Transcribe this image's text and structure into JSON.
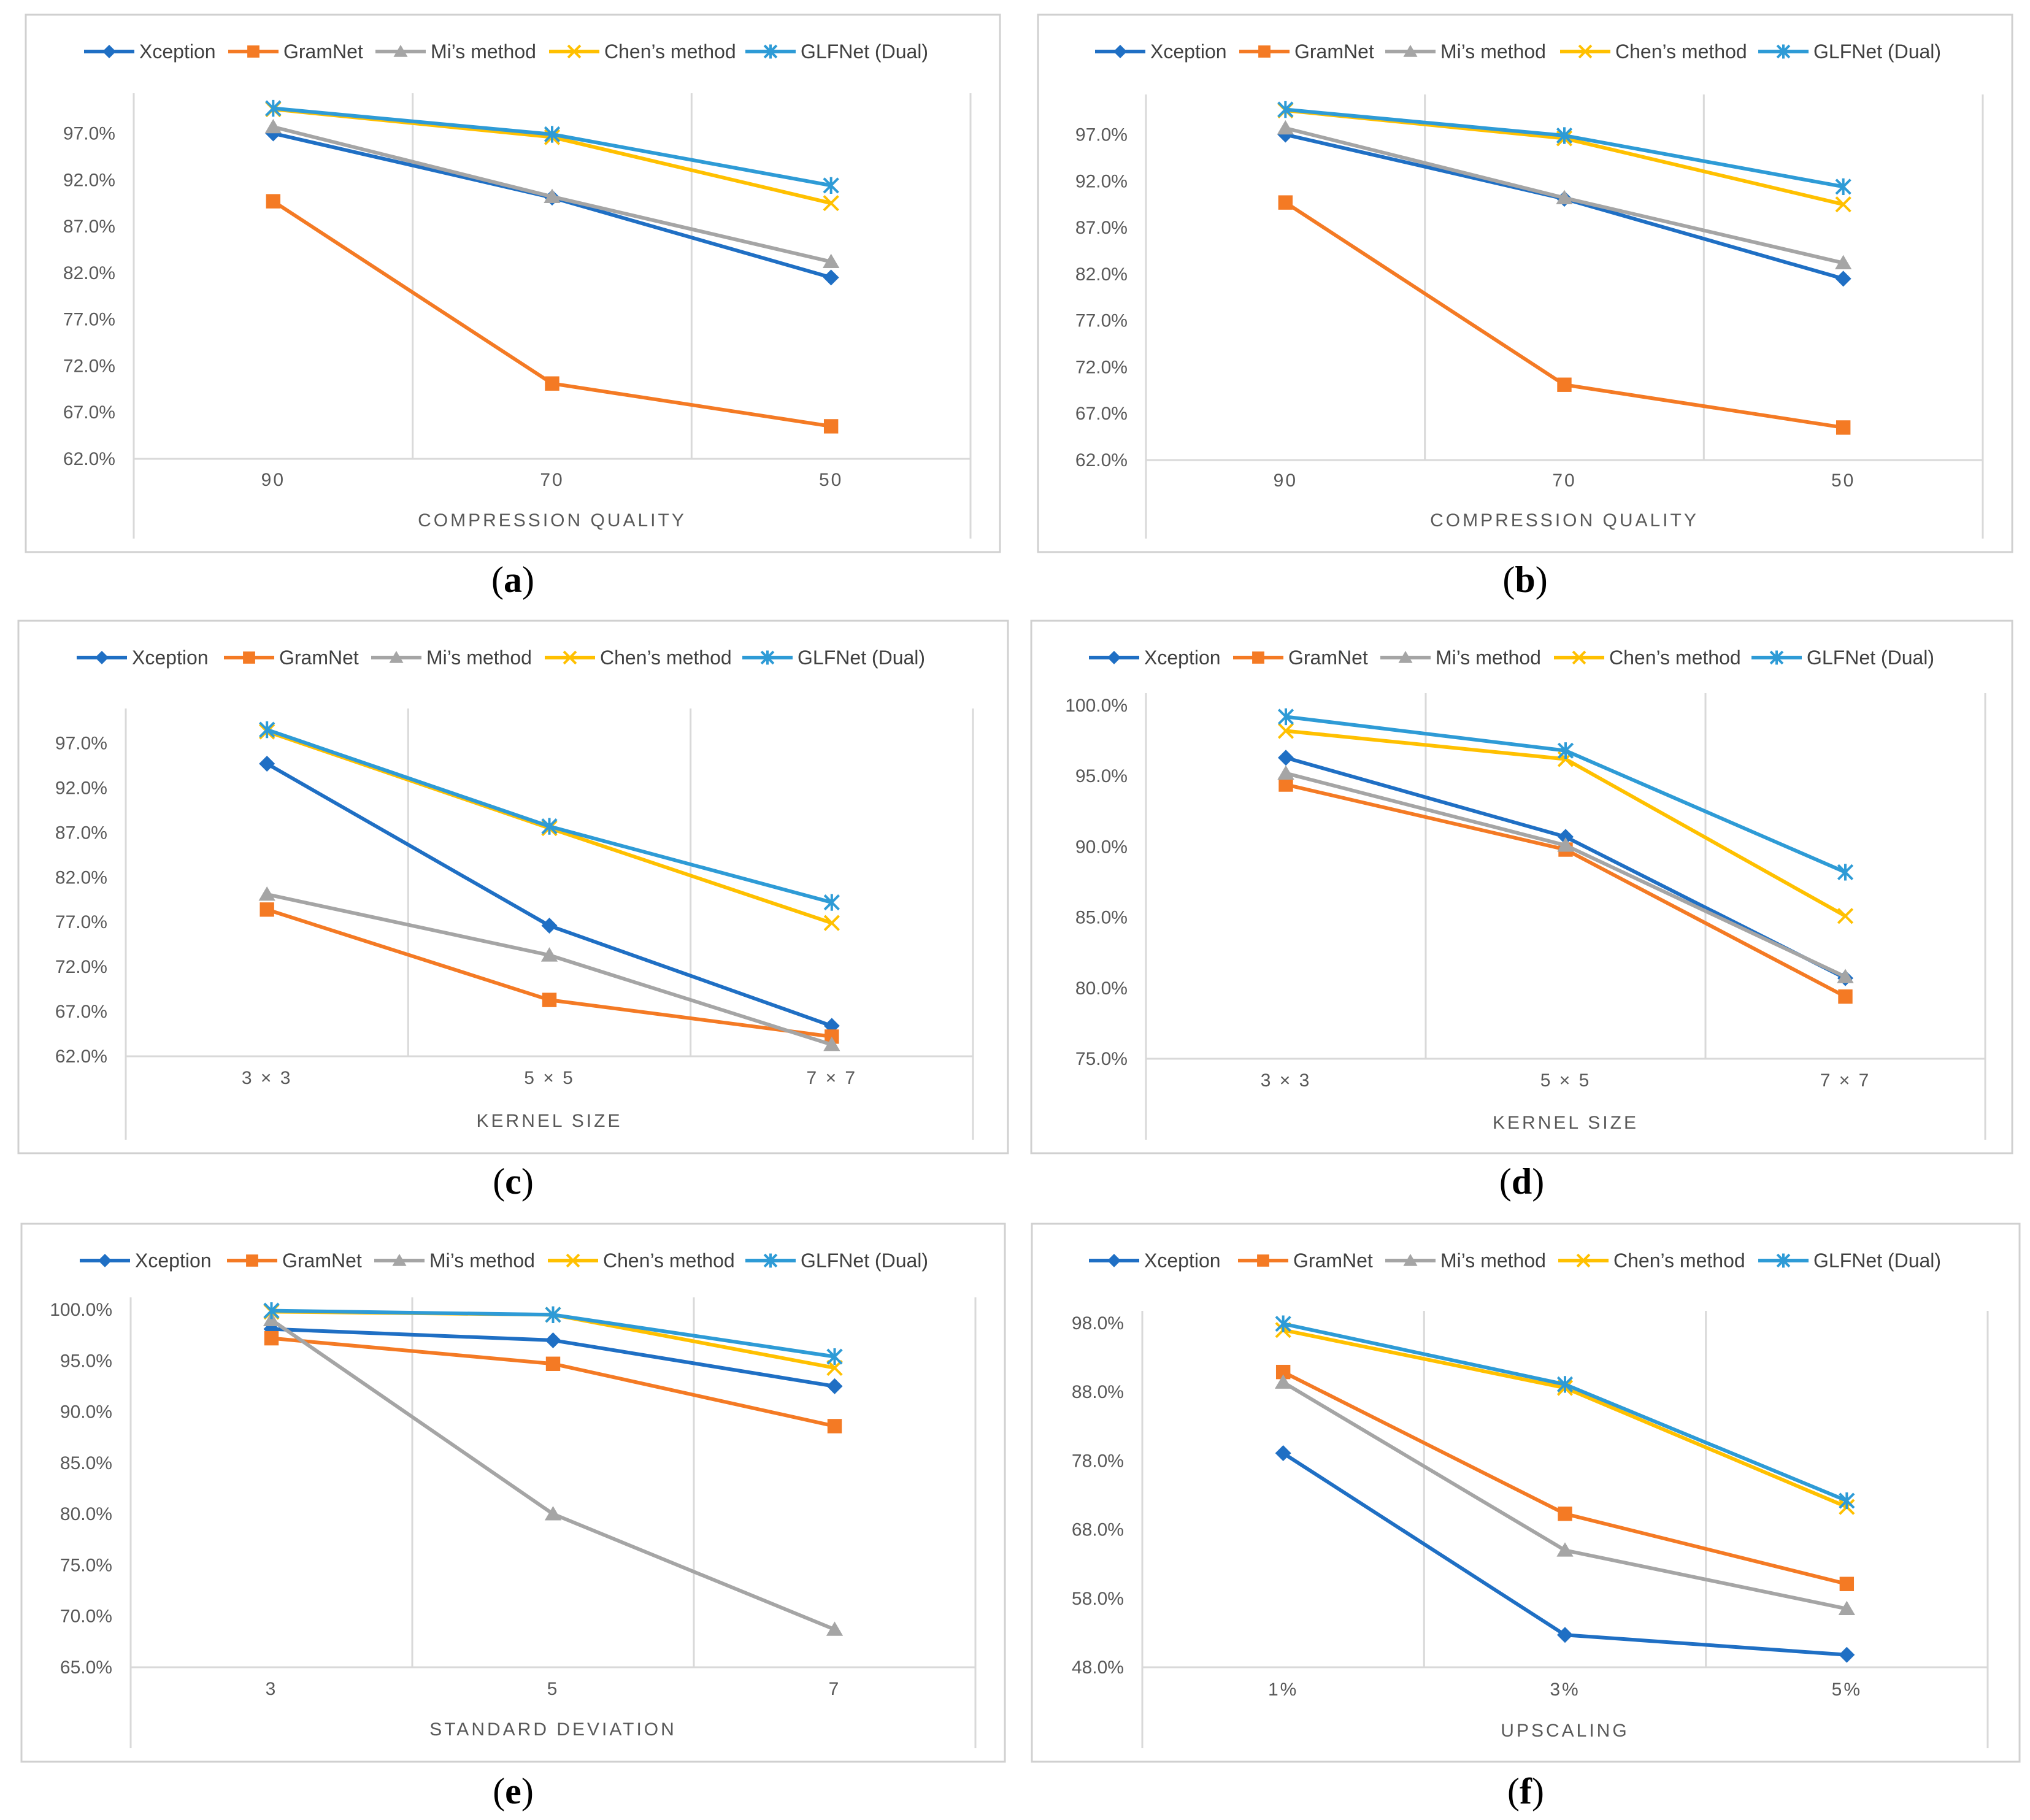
{
  "colors": {
    "Xception": "#1F6FC4",
    "GramNet": "#F47A24",
    "Mi’s method": "#A5A5A5",
    "Chen’s method": "#FFC000",
    "GLFNet (Dual)": "#2E9BD6",
    "grid": "#D9D9D9",
    "frame": "#D0D0D0"
  },
  "markers": {
    "Xception": "diamond",
    "GramNet": "square",
    "Mi’s method": "triangle",
    "Chen’s method": "x",
    "GLFNet (Dual)": "asterisk"
  },
  "chart_data": [
    {
      "panel": "a",
      "type": "line",
      "xlabel": "COMPRESSION QUALITY",
      "categories": [
        "90",
        "70",
        "50"
      ],
      "ylim": [
        0.62,
        1.0
      ],
      "yticks": [
        "62.0%",
        "67.0%",
        "72.0%",
        "77.0%",
        "82.0%",
        "87.0%",
        "92.0%",
        "97.0%"
      ],
      "series": [
        {
          "name": "Xception",
          "values": [
            0.97,
            0.901,
            0.815
          ]
        },
        {
          "name": "GramNet",
          "values": [
            0.897,
            0.701,
            0.655
          ]
        },
        {
          "name": "Mi’s method",
          "values": [
            0.977,
            0.902,
            0.832
          ]
        },
        {
          "name": "Chen’s method",
          "values": [
            0.996,
            0.966,
            0.895
          ]
        },
        {
          "name": "GLFNet (Dual)",
          "values": [
            0.997,
            0.969,
            0.914
          ]
        }
      ]
    },
    {
      "panel": "b",
      "type": "line",
      "xlabel": "COMPRESSION QUALITY",
      "categories": [
        "90",
        "70",
        "50"
      ],
      "ylim": [
        0.62,
        1.0
      ],
      "yticks": [
        "62.0%",
        "67.0%",
        "72.0%",
        "77.0%",
        "82.0%",
        "87.0%",
        "92.0%",
        "97.0%"
      ],
      "series": [
        {
          "name": "Xception",
          "values": [
            0.97,
            0.901,
            0.815
          ]
        },
        {
          "name": "GramNet",
          "values": [
            0.897,
            0.701,
            0.655
          ]
        },
        {
          "name": "Mi’s method",
          "values": [
            0.977,
            0.902,
            0.832
          ]
        },
        {
          "name": "Chen’s method",
          "values": [
            0.996,
            0.966,
            0.895
          ]
        },
        {
          "name": "GLFNet (Dual)",
          "values": [
            0.997,
            0.969,
            0.914
          ]
        }
      ]
    },
    {
      "panel": "c",
      "type": "line",
      "xlabel": "KERNEL SIZE",
      "categories": [
        "3 × 3",
        "5 × 5",
        "7 × 7"
      ],
      "ylim": [
        0.62,
        0.995
      ],
      "yticks": [
        "62.0%",
        "67.0%",
        "72.0%",
        "77.0%",
        "82.0%",
        "87.0%",
        "92.0%",
        "97.0%"
      ],
      "series": [
        {
          "name": "Xception",
          "values": [
            0.947,
            0.766,
            0.654
          ]
        },
        {
          "name": "GramNet",
          "values": [
            0.784,
            0.683,
            0.642
          ]
        },
        {
          "name": "Mi’s method",
          "values": [
            0.801,
            0.733,
            0.633
          ]
        },
        {
          "name": "Chen’s method",
          "values": [
            0.983,
            0.875,
            0.769
          ]
        },
        {
          "name": "GLFNet (Dual)",
          "values": [
            0.985,
            0.877,
            0.792
          ]
        }
      ]
    },
    {
      "panel": "d",
      "type": "line",
      "xlabel": "KERNEL SIZE",
      "categories": [
        "3 × 3",
        "5 × 5",
        "7 × 7"
      ],
      "ylim": [
        0.75,
        1.0
      ],
      "yticks": [
        "75.0%",
        "80.0%",
        "85.0%",
        "90.0%",
        "95.0%",
        "100.0%"
      ],
      "series": [
        {
          "name": "Xception",
          "values": [
            0.963,
            0.907,
            0.807
          ]
        },
        {
          "name": "GramNet",
          "values": [
            0.944,
            0.898,
            0.794
          ]
        },
        {
          "name": "Mi’s method",
          "values": [
            0.952,
            0.901,
            0.808
          ]
        },
        {
          "name": "Chen’s method",
          "values": [
            0.982,
            0.962,
            0.851
          ]
        },
        {
          "name": "GLFNet (Dual)",
          "values": [
            0.992,
            0.968,
            0.882
          ]
        }
      ]
    },
    {
      "panel": "e",
      "type": "line",
      "xlabel": "STANDARD DEVIATION",
      "categories": [
        "3",
        "5",
        "7"
      ],
      "ylim": [
        0.65,
        1.0
      ],
      "yticks": [
        "65.0%",
        "70.0%",
        "75.0%",
        "80.0%",
        "85.0%",
        "90.0%",
        "95.0%",
        "100.0%"
      ],
      "series": [
        {
          "name": "Xception",
          "values": [
            0.981,
            0.97,
            0.925
          ]
        },
        {
          "name": "GramNet",
          "values": [
            0.972,
            0.947,
            0.886
          ]
        },
        {
          "name": "Mi’s method",
          "values": [
            0.99,
            0.8,
            0.687
          ]
        },
        {
          "name": "Chen’s method",
          "values": [
            0.998,
            0.995,
            0.943
          ]
        },
        {
          "name": "GLFNet (Dual)",
          "values": [
            0.999,
            0.995,
            0.954
          ]
        }
      ]
    },
    {
      "panel": "f",
      "type": "line",
      "xlabel": "UPSCALING",
      "categories": [
        "1%",
        "3%",
        "5%"
      ],
      "ylim": [
        0.48,
        0.98
      ],
      "yticks": [
        "48.0%",
        "58.0%",
        "68.0%",
        "78.0%",
        "88.0%",
        "98.0%"
      ],
      "series": [
        {
          "name": "Xception",
          "values": [
            0.791,
            0.527,
            0.498
          ]
        },
        {
          "name": "GramNet",
          "values": [
            0.909,
            0.703,
            0.601
          ]
        },
        {
          "name": "Mi’s method",
          "values": [
            0.894,
            0.65,
            0.565
          ]
        },
        {
          "name": "Chen’s method",
          "values": [
            0.97,
            0.886,
            0.713
          ]
        },
        {
          "name": "GLFNet (Dual)",
          "values": [
            0.979,
            0.891,
            0.722
          ]
        }
      ]
    }
  ]
}
